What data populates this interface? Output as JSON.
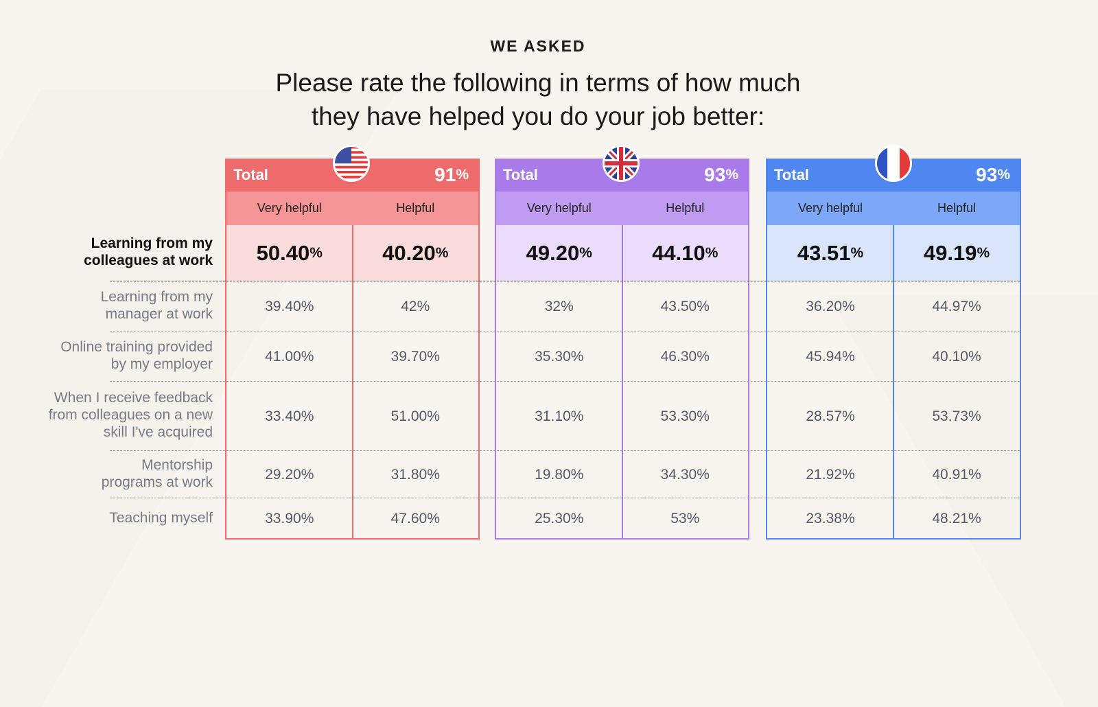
{
  "header": {
    "eyebrow": "WE ASKED",
    "title_lines": [
      "Please rate the following in terms of how much",
      "they have helped you do your job better:"
    ]
  },
  "table": {
    "row_labels": [
      [
        "Learning from my",
        "colleagues at work"
      ],
      [
        "Learning from my",
        "manager at work"
      ],
      [
        "Online training provided",
        "by my employer"
      ],
      [
        "When I receive feedback",
        "from colleagues on a new",
        "skill I've acquired"
      ],
      [
        "Mentorship",
        "programs at work"
      ],
      [
        "Teaching myself"
      ]
    ],
    "groups": [
      {
        "total_label": "Total",
        "total": "91%",
        "columns": [
          "Very helpful",
          "Helpful"
        ],
        "cells": [
          [
            "50.40%",
            "40.20%"
          ],
          [
            "39.40%",
            "42%"
          ],
          [
            "41.00%",
            "39.70%"
          ],
          [
            "33.40%",
            "51.00%"
          ],
          [
            "29.20%",
            "31.80%"
          ],
          [
            "33.90%",
            "47.60%"
          ]
        ]
      },
      {
        "total_label": "Total",
        "total": "93%",
        "columns": [
          "Very helpful",
          "Helpful"
        ],
        "cells": [
          [
            "49.20%",
            "44.10%"
          ],
          [
            "32%",
            "43.50%"
          ],
          [
            "35.30%",
            "46.30%"
          ],
          [
            "31.10%",
            "53.30%"
          ],
          [
            "19.80%",
            "34.30%"
          ],
          [
            "25.30%",
            "53%"
          ]
        ]
      },
      {
        "total_label": "Total",
        "total": "93%",
        "columns": [
          "Very helpful",
          "Helpful"
        ],
        "cells": [
          [
            "43.51%",
            "49.19%"
          ],
          [
            "36.20%",
            "44.97%"
          ],
          [
            "45.94%",
            "40.10%"
          ],
          [
            "28.57%",
            "53.73%"
          ],
          [
            "21.92%",
            "40.91%"
          ],
          [
            "23.38%",
            "48.21%"
          ]
        ]
      }
    ]
  }
}
